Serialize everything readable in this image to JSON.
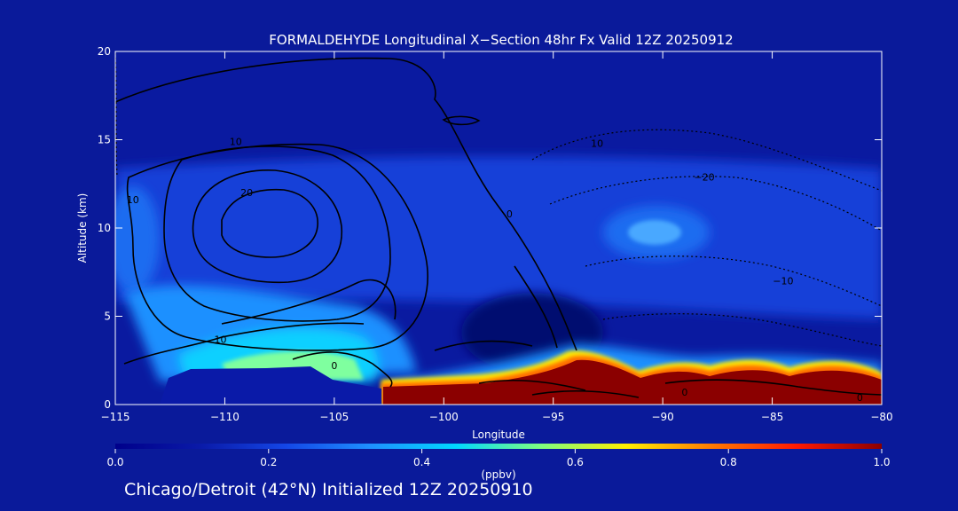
{
  "chart_data": {
    "type": "heatmap",
    "title": "FORMALDEHYDE Longitudinal X−Section 48hr  Fx Valid 12Z 20250912",
    "xlabel": "Longitude",
    "ylabel": "Altitude (km)",
    "xlim": [
      -115,
      -80
    ],
    "ylim": [
      0,
      20
    ],
    "x_ticks": [
      -115,
      -110,
      -105,
      -100,
      -95,
      -90,
      -85,
      -80
    ],
    "x_tick_labels": [
      "−115",
      "−110",
      "−105",
      "−100",
      "−95",
      "−90",
      "−85",
      "−80"
    ],
    "y_ticks": [
      0,
      5,
      10,
      15,
      20
    ],
    "y_tick_labels": [
      "0",
      "5",
      "10",
      "15",
      "20"
    ],
    "colorbar": {
      "label": "(ppbv)",
      "min": 0.0,
      "max": 1.0,
      "ticks": [
        0.0,
        0.2,
        0.4,
        0.6,
        0.8,
        1.0
      ],
      "tick_labels": [
        "0.0",
        "0.2",
        "0.4",
        "0.6",
        "0.8",
        "1.0"
      ],
      "colormap": [
        "#00008b",
        "#0a1aa8",
        "#1446e6",
        "#1e90ff",
        "#00d7ff",
        "#7fff7f",
        "#ffee00",
        "#ff7a00",
        "#ff1a00",
        "#8b0000"
      ]
    },
    "grid": false,
    "contour_labels": [
      {
        "text": "10",
        "x": -109.5,
        "y": 14.9
      },
      {
        "text": "20",
        "x": -109.0,
        "y": 12.0
      },
      {
        "text": "10",
        "x": -114.2,
        "y": 11.6
      },
      {
        "text": "0",
        "x": -97.0,
        "y": 10.8
      },
      {
        "text": "10",
        "x": -93.0,
        "y": 14.8
      },
      {
        "text": "−20",
        "x": -88.1,
        "y": 12.9
      },
      {
        "text": "−10",
        "x": -84.5,
        "y": 7.0
      },
      {
        "text": "10",
        "x": -110.2,
        "y": 3.7
      },
      {
        "text": "0",
        "x": -105.0,
        "y": 2.2
      },
      {
        "text": "0",
        "x": -89.0,
        "y": 0.7
      },
      {
        "text": "0",
        "x": -81.0,
        "y": 0.4
      }
    ]
  },
  "footer": {
    "text": "Chicago/Detroit (42°N) Initialized 12Z 20250910"
  }
}
